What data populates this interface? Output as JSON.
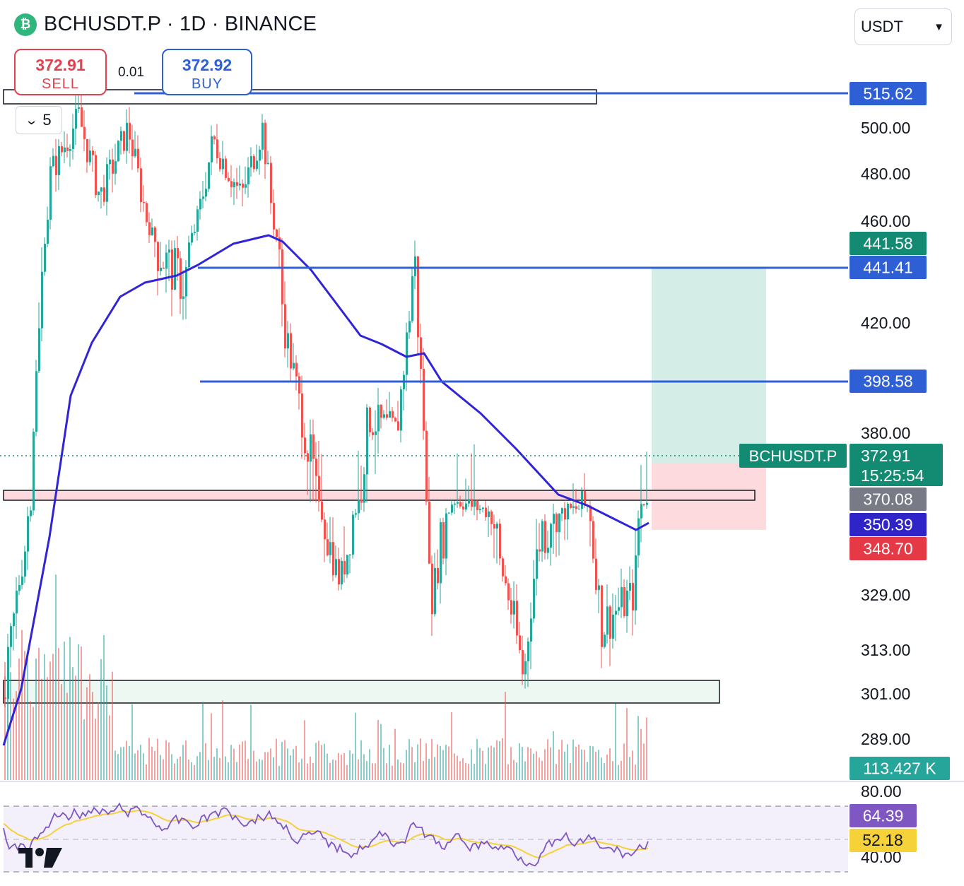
{
  "header": {
    "title": "BCHUSDT.P · 1D · BINANCE",
    "coin_icon": "bitcoin-cash-icon"
  },
  "trade": {
    "sell_price": "372.91",
    "sell_label": "SELL",
    "buy_price": "372.92",
    "buy_label": "BUY",
    "spread": "0.01"
  },
  "quantity_dropdown": {
    "value": "5",
    "icon": "chevron-down-icon"
  },
  "currency_select": {
    "value": "USDT",
    "icon": "chevron-down-icon"
  },
  "colors": {
    "up": "#26a69a",
    "down": "#ef5350",
    "ma": "#3124d6",
    "level": "#2f5fd5",
    "rsi": "#7e57c2",
    "rsi_ma": "#f5d13a",
    "rsi_band": "#f3effb",
    "target_zone": "#d4ede6",
    "stop_zone": "#fcdadd",
    "price_tag": "#138a72"
  },
  "chart_data": {
    "type": "candlestick",
    "y_tick_labels": [
      "500.00",
      "480.00",
      "460.00",
      "420.00",
      "380.00",
      "329.00",
      "313.00",
      "301.00",
      "289.00"
    ],
    "price_tags": {
      "level_top": "515.62",
      "target": "441.58",
      "level_mid": "441.41",
      "level_low": "398.58",
      "last_price": "372.91",
      "countdown": "15:25:54",
      "symbol": "BCHUSDT.P",
      "high_marker": "370.08",
      "ma_value": "350.39",
      "stop": "348.70",
      "volume": "113.427 K"
    },
    "horizontal_levels": [
      515.62,
      441.41,
      398.58
    ],
    "last_price": 372.91,
    "position": {
      "entry": 372.91,
      "target": 441.58,
      "stop": 348.7
    },
    "zones": [
      {
        "name": "supply",
        "low": 513,
        "high": 518,
        "fill": "none"
      },
      {
        "name": "pivot",
        "low": 368.5,
        "high": 371.5,
        "fill": "#fcdadd"
      },
      {
        "name": "demand",
        "low": 297,
        "high": 305,
        "fill": "#eef8f3"
      }
    ],
    "ma_period_label": "",
    "rsi": {
      "y_tick_labels": [
        "80.00",
        "40.00"
      ],
      "value": "64.39",
      "ma_value": "52.18",
      "upper_band": 70,
      "lower_band": 30,
      "middle": 50
    }
  }
}
